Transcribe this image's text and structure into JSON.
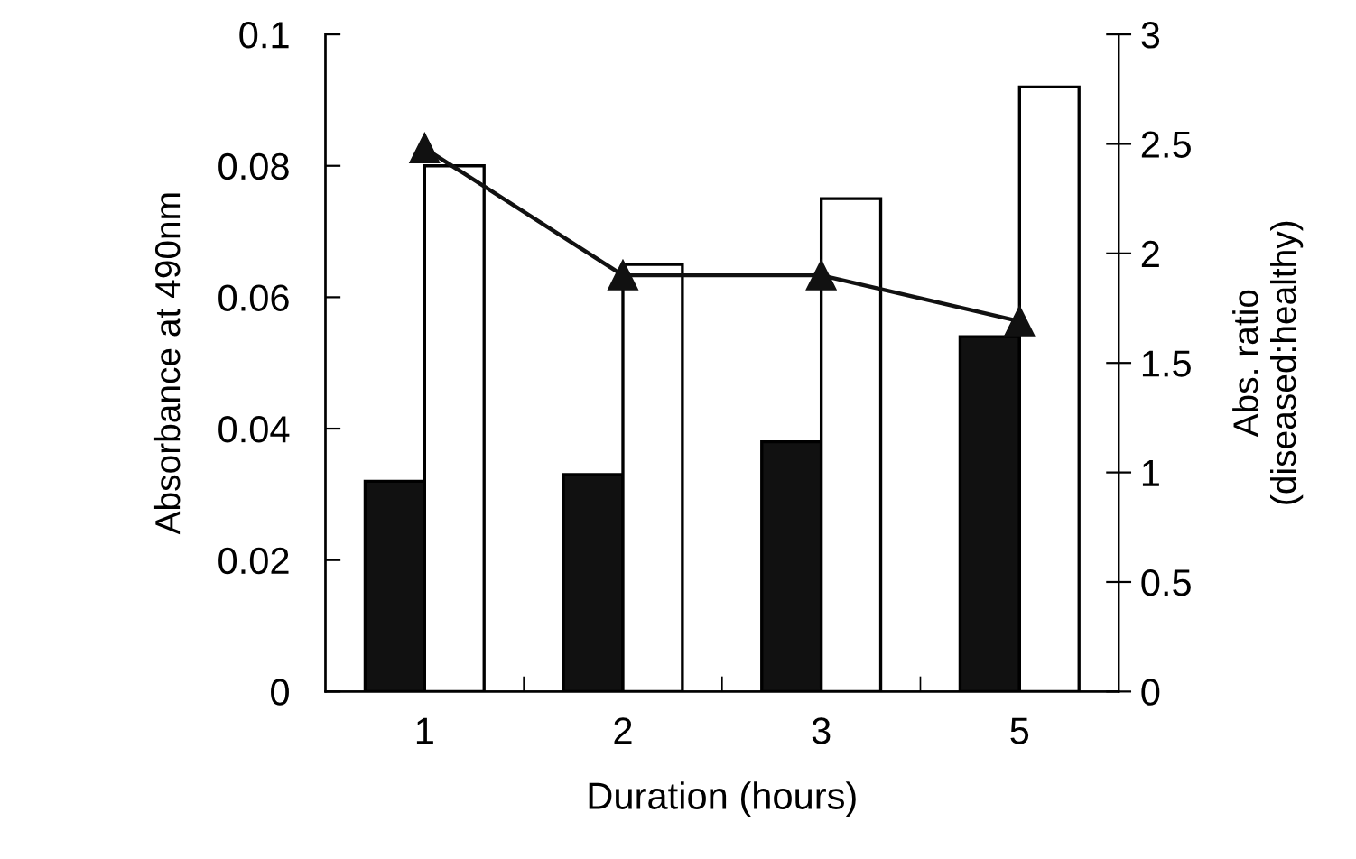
{
  "chart_data": {
    "type": "bar",
    "xlabel": "Duration (hours)",
    "ylabel": "Absorbance at 490nm",
    "y2label": "Abs. ratio\n(diseased:healthy)",
    "categories": [
      "1",
      "2",
      "3",
      "5"
    ],
    "series": [
      {
        "color": "#111111",
        "values": [
          0.032,
          0.033,
          0.038,
          0.054
        ]
      },
      {
        "color": "#ffffff",
        "values": [
          0.08,
          0.065,
          0.075,
          0.092
        ]
      },
      {
        "type": "line",
        "axis": "y2",
        "color": "#111111",
        "marker": "triangle",
        "values": [
          2.48,
          1.9,
          1.9,
          1.69
        ]
      }
    ],
    "ylim": [
      0,
      0.1
    ],
    "yticks": [
      0,
      0.02,
      0.04,
      0.06,
      0.08,
      0.1
    ],
    "y2lim": [
      0,
      3
    ],
    "y2ticks": [
      0,
      0.5,
      1,
      1.5,
      2,
      2.5,
      3
    ],
    "grid": false,
    "legend": false
  }
}
